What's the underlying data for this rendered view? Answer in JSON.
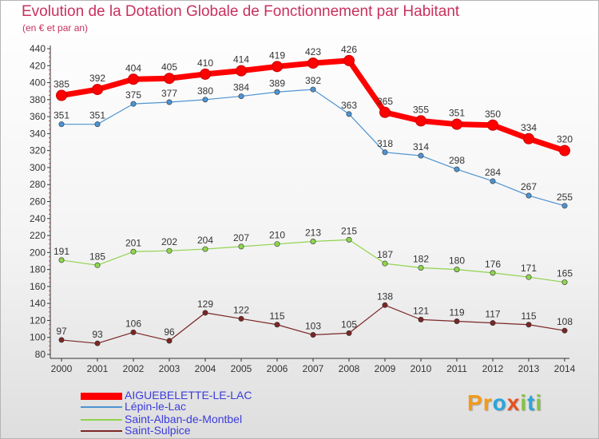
{
  "header": {
    "title": "Evolution de la Dotation Globale de Fonctionnement par Habitant",
    "subtitle": "(en € et par an)"
  },
  "brand": {
    "text": "Proxiti",
    "letters": [
      "P",
      "r",
      "o",
      "x",
      "i",
      "t",
      "i"
    ],
    "colors": [
      "#f39a1b",
      "#f39a1b",
      "#2aa5dc",
      "#e8501f",
      "#86c440",
      "#2aa5dc",
      "#86c440"
    ]
  },
  "chart_data": {
    "type": "line",
    "title": "Evolution de la Dotation Globale de Fonctionnement par Habitant",
    "subtitle": "(en € et par an)",
    "xlabel": "",
    "ylabel": "",
    "ylim": [
      80,
      440
    ],
    "yticks": [
      80,
      100,
      120,
      140,
      160,
      180,
      200,
      220,
      240,
      260,
      280,
      300,
      320,
      340,
      360,
      380,
      400,
      420,
      440
    ],
    "grid": false,
    "legend_position": "bottom-left",
    "categories": [
      "2000",
      "2001",
      "2002",
      "2003",
      "2004",
      "2005",
      "2006",
      "2007",
      "2008",
      "2009",
      "2010",
      "2011",
      "2012",
      "2013",
      "2014"
    ],
    "series": [
      {
        "name": "AIGUEBELETTE-LE-LAC",
        "color": "#ff0000",
        "values": [
          385,
          392,
          404,
          405,
          410,
          414,
          419,
          423,
          426,
          365,
          355,
          351,
          350,
          334,
          320
        ]
      },
      {
        "name": "Lépin-le-Lac",
        "color": "#4d93d1",
        "values": [
          351,
          351,
          375,
          377,
          380,
          384,
          389,
          392,
          363,
          318,
          314,
          298,
          284,
          267,
          255
        ]
      },
      {
        "name": "Saint-Alban-de-Montbel",
        "color": "#8fd44e",
        "values": [
          191,
          185,
          201,
          202,
          204,
          207,
          210,
          213,
          215,
          187,
          182,
          180,
          176,
          171,
          165
        ]
      },
      {
        "name": "Saint-Sulpice",
        "color": "#7a2626",
        "values": [
          97,
          93,
          106,
          96,
          129,
          122,
          115,
          103,
          105,
          138,
          121,
          119,
          117,
          115,
          108
        ]
      }
    ]
  }
}
